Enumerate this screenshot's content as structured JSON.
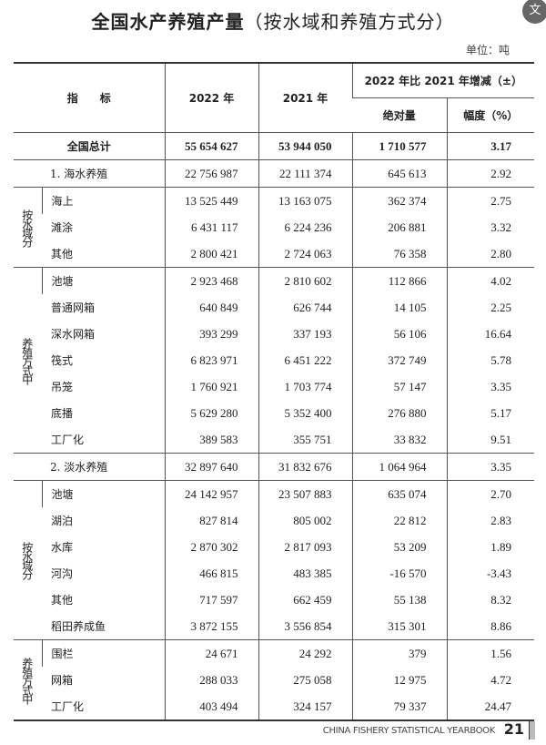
{
  "title": "全国水产养殖产量",
  "title_paren": "（按水域和养殖方式分）",
  "unit": "单位：吨",
  "translate_icon_label": "文",
  "header": {
    "indicator": "指　　标",
    "y2022": "2022 年",
    "y2021": "2021 年",
    "change": "2022 年比 2021 年增减（±）",
    "absolute": "绝对量",
    "pct": "幅度（%）"
  },
  "total": {
    "name": "全国总计",
    "y2022": "55 654 627",
    "y2021": "53 944 050",
    "abs": "1 710 577",
    "pct": "3.17"
  },
  "marine": {
    "name": "1. 海水养殖",
    "y2022": "22 756 987",
    "y2021": "22 111 374",
    "abs": "645 613",
    "pct": "2.92",
    "by_water_label": "按水域分",
    "by_water": [
      {
        "name": "海上",
        "y2022": "13 525 449",
        "y2021": "13 163 075",
        "abs": "362 374",
        "pct": "2.75"
      },
      {
        "name": "滩涂",
        "y2022": "6 431 117",
        "y2021": "6 224 236",
        "abs": "206 881",
        "pct": "3.32"
      },
      {
        "name": "其他",
        "y2022": "2 800 421",
        "y2021": "2 724 063",
        "abs": "76 358",
        "pct": "2.80"
      }
    ],
    "by_method_label": "养殖方式中",
    "by_method": [
      {
        "name": "池塘",
        "y2022": "2 923 468",
        "y2021": "2 810 602",
        "abs": "112 866",
        "pct": "4.02"
      },
      {
        "name": "普通网箱",
        "y2022": "640 849",
        "y2021": "626 744",
        "abs": "14 105",
        "pct": "2.25"
      },
      {
        "name": "深水网箱",
        "y2022": "393 299",
        "y2021": "337 193",
        "abs": "56 106",
        "pct": "16.64"
      },
      {
        "name": "筏式",
        "y2022": "6 823 971",
        "y2021": "6 451 222",
        "abs": "372 749",
        "pct": "5.78"
      },
      {
        "name": "吊笼",
        "y2022": "1 760 921",
        "y2021": "1 703 774",
        "abs": "57 147",
        "pct": "3.35"
      },
      {
        "name": "底播",
        "y2022": "5 629 280",
        "y2021": "5 352 400",
        "abs": "276 880",
        "pct": "5.17"
      },
      {
        "name": "工厂化",
        "y2022": "389 583",
        "y2021": "355 751",
        "abs": "33 832",
        "pct": "9.51"
      }
    ]
  },
  "freshwater": {
    "name": "2. 淡水养殖",
    "y2022": "32 897 640",
    "y2021": "31 832 676",
    "abs": "1 064 964",
    "pct": "3.35",
    "by_water_label": "按水域分",
    "by_water": [
      {
        "name": "池塘",
        "y2022": "24 142 957",
        "y2021": "23 507 883",
        "abs": "635 074",
        "pct": "2.70"
      },
      {
        "name": "湖泊",
        "y2022": "827 814",
        "y2021": "805 002",
        "abs": "22 812",
        "pct": "2.83"
      },
      {
        "name": "水库",
        "y2022": "2 870 302",
        "y2021": "2 817 093",
        "abs": "53 209",
        "pct": "1.89"
      },
      {
        "name": "河沟",
        "y2022": "466 815",
        "y2021": "483 385",
        "abs": "-16 570",
        "pct": "-3.43"
      },
      {
        "name": "其他",
        "y2022": "717 597",
        "y2021": "662 459",
        "abs": "55 138",
        "pct": "8.32"
      },
      {
        "name": "稻田养成鱼",
        "y2022": "3 872 155",
        "y2021": "3 556 854",
        "abs": "315 301",
        "pct": "8.86"
      }
    ],
    "by_method_label": "养殖方式中",
    "by_method": [
      {
        "name": "围栏",
        "y2022": "24 671",
        "y2021": "24 292",
        "abs": "379",
        "pct": "1.56"
      },
      {
        "name": "网箱",
        "y2022": "288 033",
        "y2021": "275 058",
        "abs": "12 975",
        "pct": "4.72"
      },
      {
        "name": "工厂化",
        "y2022": "403 494",
        "y2021": "324 157",
        "abs": "79 337",
        "pct": "24.47"
      }
    ]
  },
  "footer": {
    "book": "CHINA FISHERY STATISTICAL YEARBOOK",
    "page": "21"
  }
}
